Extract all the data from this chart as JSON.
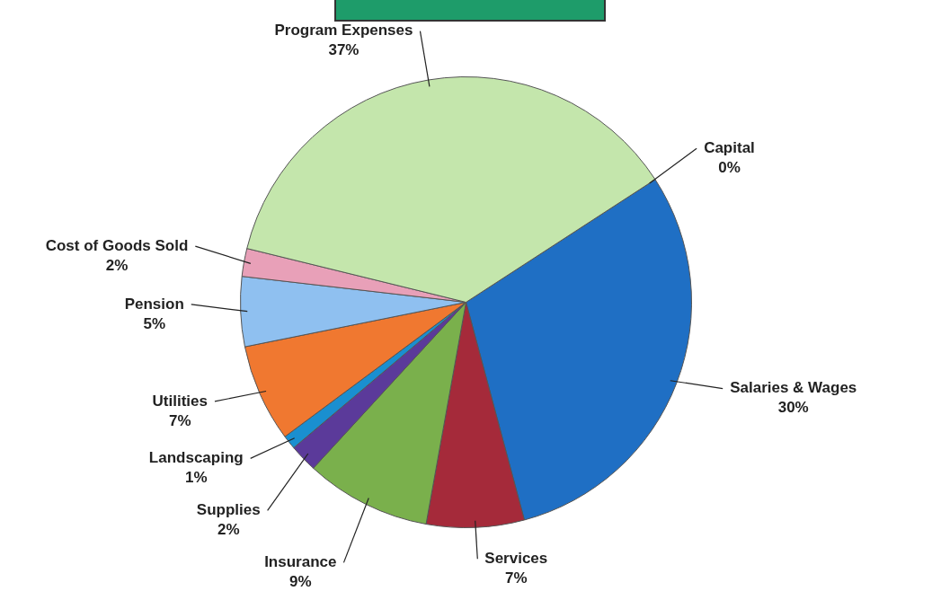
{
  "chart_data": {
    "type": "pie",
    "categories": [
      "Capital",
      "Salaries & Wages",
      "Services",
      "Insurance",
      "Supplies",
      "Landscaping",
      "Utilities",
      "Pension",
      "Cost of Goods Sold",
      "Program Expenses"
    ],
    "values": [
      0,
      30,
      7,
      9,
      2,
      1,
      7,
      5,
      2,
      37
    ],
    "value_labels": [
      "0%",
      "30%",
      "7%",
      "9%",
      "2%",
      "1%",
      "7%",
      "5%",
      "2%",
      "37%"
    ],
    "colors": [
      "#3a3a90",
      "#1f6fc4",
      "#a52a3a",
      "#7ab04c",
      "#5b3a9a",
      "#1a8fd0",
      "#f07830",
      "#8fc0f0",
      "#e8a0b8",
      "#c4e6ac"
    ],
    "legend": false
  }
}
